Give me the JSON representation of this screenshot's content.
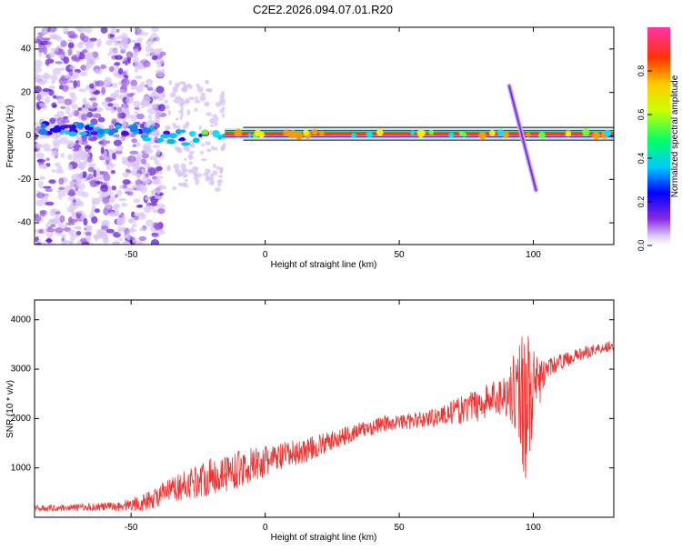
{
  "title": "C2E2.2026.094.07.01.R20",
  "chart_data": [
    {
      "type": "heatmap",
      "xlabel": "Height of straight line (km)",
      "ylabel": "Frequency (Hz)",
      "xlim": [
        -86,
        130
      ],
      "ylim": [
        -50,
        50
      ],
      "xticks": [
        -50,
        0,
        50,
        100
      ],
      "yticks": [
        -40,
        -20,
        0,
        20,
        40
      ],
      "colorbar": {
        "label": "Normalized spectral amplitude",
        "range": [
          0,
          1
        ],
        "ticks": [
          "0.0",
          "0.2",
          "0.4",
          "0.6",
          "0.8"
        ]
      },
      "features": {
        "noise_region_km": [
          -86,
          -38
        ],
        "transition_region_km": [
          -38,
          -15
        ],
        "carrier_band_km": [
          -15,
          130
        ],
        "carrier_frequency_hz": 1,
        "streak_km": [
          91,
          101
        ],
        "streak_frequency_hz": [
          23,
          -25
        ]
      }
    },
    {
      "type": "line",
      "xlabel": "Height of straight line (km)",
      "ylabel": "SNR (10 * v/v)",
      "xlim": [
        -86,
        130
      ],
      "ylim": [
        0,
        4400
      ],
      "xticks": [
        -50,
        0,
        50,
        100
      ],
      "yticks": [
        1000,
        2000,
        3000,
        4000
      ],
      "series": [
        {
          "name": "SNR",
          "color": "#ee3333",
          "x": [
            -86,
            -70,
            -55,
            -45,
            -35,
            -25,
            -15,
            -5,
            5,
            15,
            25,
            35,
            45,
            55,
            65,
            75,
            85,
            90,
            94,
            97,
            100,
            102,
            105,
            110,
            120,
            130
          ],
          "values": [
            180,
            200,
            220,
            300,
            550,
            750,
            900,
            1050,
            1200,
            1350,
            1550,
            1750,
            1900,
            1950,
            2050,
            2200,
            2400,
            2500,
            2600,
            2400,
            2500,
            2700,
            3000,
            3150,
            3350,
            3500
          ],
          "noise_amplitude": [
            60,
            70,
            100,
            180,
            250,
            350,
            400,
            350,
            300,
            260,
            200,
            180,
            160,
            160,
            200,
            300,
            400,
            450,
            900,
            1800,
            900,
            500,
            200,
            150,
            130,
            120
          ]
        }
      ]
    }
  ]
}
